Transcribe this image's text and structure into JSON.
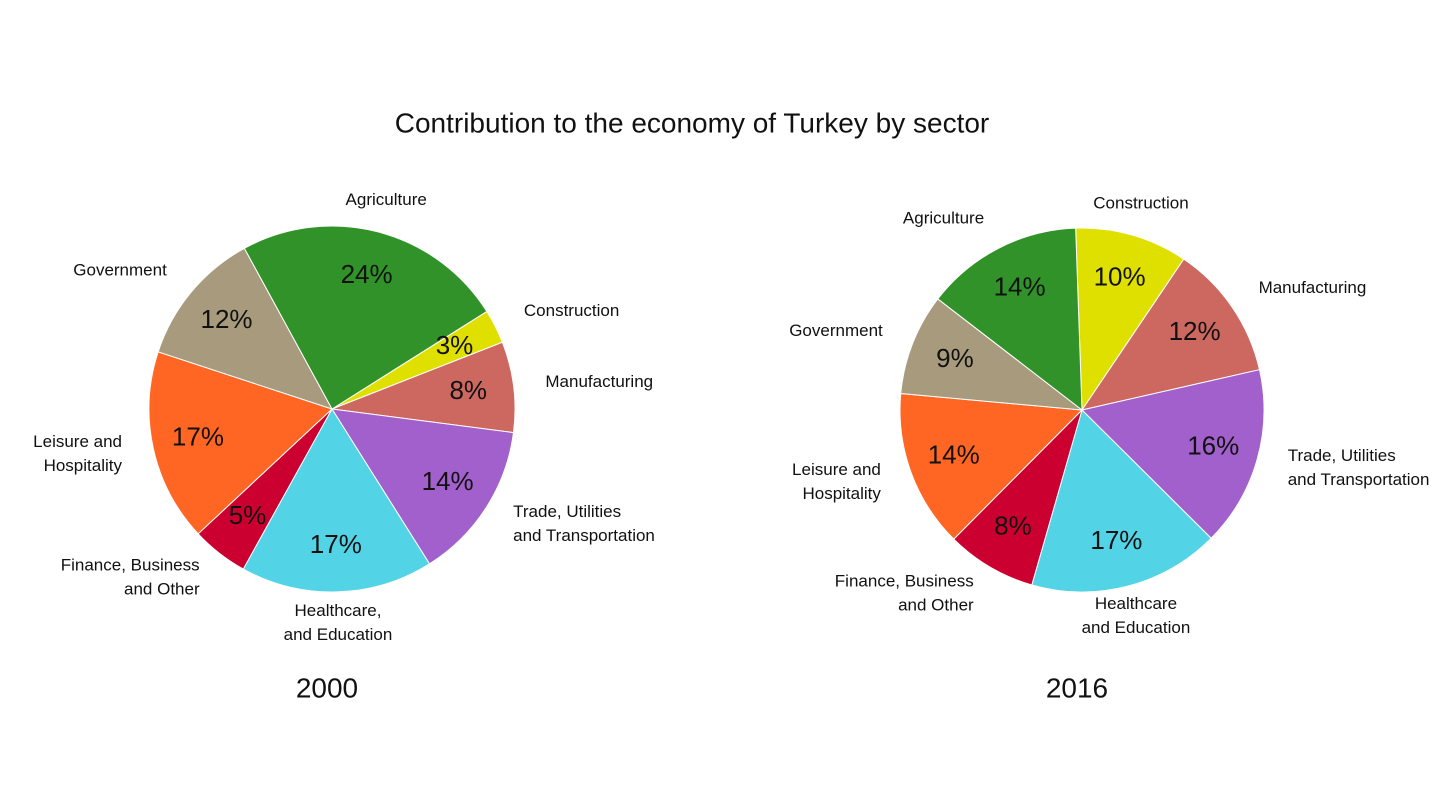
{
  "title": "Contribution to the economy of Turkey by sector",
  "chart_data": [
    {
      "type": "pie",
      "title": "2000",
      "categories": [
        "Construction",
        "Manufacturing",
        "Trade, Utilities\nand Transportation",
        "Healthcare,\nand Education",
        "Finance, Business\nand Other",
        "Leisure and\nHospitality",
        "Government",
        "Agriculture"
      ],
      "values": [
        3,
        8,
        14,
        17,
        5,
        17,
        12,
        24
      ],
      "value_labels": [
        "3%",
        "8%",
        "14%",
        "17%",
        "5%",
        "17%",
        "12%",
        "24%"
      ],
      "colors": [
        "#e0e000",
        "#cd6860",
        "#a160cc",
        "#52d4e6",
        "#cc0030",
        "#ff6624",
        "#a89a7c",
        "#31922a"
      ]
    },
    {
      "type": "pie",
      "title": "2016",
      "categories": [
        "Construction",
        "Manufacturing",
        "Trade, Utilities\nand Transportation",
        "Healthcare\nand Education",
        "Finance, Business\nand Other",
        "Leisure and\nHospitality",
        "Government",
        "Agriculture"
      ],
      "values": [
        10,
        12,
        16,
        17,
        8,
        14,
        9,
        14
      ],
      "value_labels": [
        "10%",
        "12%",
        "16%",
        "17%",
        "8%",
        "14%",
        "9%",
        "14%"
      ],
      "colors": [
        "#e0e000",
        "#cd6860",
        "#a160cc",
        "#52d4e6",
        "#cc0030",
        "#ff6624",
        "#a89a7c",
        "#31922a"
      ]
    }
  ]
}
